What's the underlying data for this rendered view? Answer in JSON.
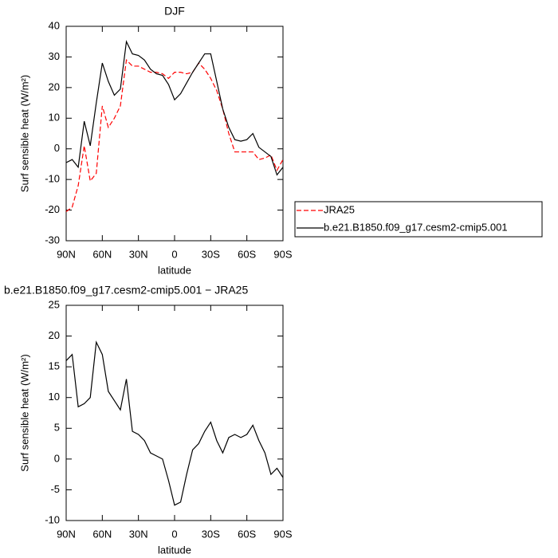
{
  "chart_data": [
    {
      "type": "line",
      "title": "DJF",
      "xlabel": "latitude",
      "ylabel": "Surf sensible heat (W/m²)",
      "x": [
        90,
        85,
        80,
        75,
        70,
        65,
        60,
        55,
        50,
        45,
        40,
        35,
        30,
        25,
        20,
        15,
        10,
        5,
        0,
        -5,
        -10,
        -15,
        -20,
        -25,
        -30,
        -35,
        -40,
        -45,
        -50,
        -55,
        -60,
        -65,
        -70,
        -75,
        -80,
        -85,
        -90
      ],
      "xlim": [
        90,
        -90
      ],
      "xticks": [
        {
          "value": 90,
          "label": "90N"
        },
        {
          "value": 60,
          "label": "60N"
        },
        {
          "value": 30,
          "label": "30N"
        },
        0,
        {
          "value": -30,
          "label": "30S"
        },
        {
          "value": -60,
          "label": "60S"
        },
        {
          "value": -90,
          "label": "90S"
        }
      ],
      "ylim": [
        -30,
        40
      ],
      "yticks": [
        -30,
        -20,
        -10,
        0,
        10,
        20,
        30,
        40
      ],
      "series": [
        {
          "name": "JRA25",
          "color": "#ff0000",
          "dash": true,
          "values": [
            -20.5,
            -19,
            -12,
            1,
            -10.5,
            -8,
            14,
            7,
            10,
            14,
            29,
            27,
            27,
            26,
            25,
            25,
            24.5,
            23,
            25,
            25,
            24.5,
            25,
            28,
            26,
            23,
            19,
            13,
            5,
            -1,
            -1,
            -1,
            -1,
            -3.5,
            -3,
            -2,
            -7,
            -3.5
          ]
        },
        {
          "name": "b.e21.B1850.f09_g17.cesm2-cmip5.001",
          "color": "#000000",
          "dash": false,
          "values": [
            -4.5,
            -3.5,
            -6,
            9,
            1,
            15,
            28,
            22,
            17.5,
            19.5,
            35,
            31,
            30.5,
            29,
            26,
            24.5,
            24,
            21,
            16,
            18,
            21.5,
            25,
            28,
            31,
            31,
            22,
            13,
            7,
            3,
            2.5,
            3,
            5,
            0.5,
            -1,
            -2.5,
            -8.5,
            -6
          ]
        }
      ]
    },
    {
      "type": "line",
      "title": "b.e21.B1850.f09_g17.cesm2-cmip5.001 − JRA25",
      "xlabel": "latitude",
      "ylabel": "Surf sensible heat (W/m²)",
      "x": [
        90,
        85,
        80,
        75,
        70,
        65,
        60,
        55,
        50,
        45,
        40,
        35,
        30,
        25,
        20,
        15,
        10,
        5,
        0,
        -5,
        -10,
        -15,
        -20,
        -25,
        -30,
        -35,
        -40,
        -45,
        -50,
        -55,
        -60,
        -65,
        -70,
        -75,
        -80,
        -85,
        -90
      ],
      "xlim": [
        90,
        -90
      ],
      "xticks": [
        {
          "value": 90,
          "label": "90N"
        },
        {
          "value": 60,
          "label": "60N"
        },
        {
          "value": 30,
          "label": "30N"
        },
        0,
        {
          "value": -30,
          "label": "30S"
        },
        {
          "value": -60,
          "label": "60S"
        },
        {
          "value": -90,
          "label": "90S"
        }
      ],
      "ylim": [
        -10,
        25
      ],
      "yticks": [
        -10,
        -5,
        0,
        5,
        10,
        15,
        20,
        25
      ],
      "series": [
        {
          "color": "#000000",
          "dash": false,
          "values": [
            16,
            17,
            8.5,
            9,
            10,
            19,
            17,
            11,
            9.5,
            8,
            13,
            4.5,
            4,
            3,
            1,
            0.5,
            0,
            -3.5,
            -7.5,
            -7,
            -2.5,
            1.5,
            2.5,
            4.5,
            6,
            3,
            1,
            3.5,
            4,
            3.5,
            4,
            5.5,
            3,
            1,
            -2.5,
            -1.5,
            -3
          ]
        }
      ]
    }
  ]
}
